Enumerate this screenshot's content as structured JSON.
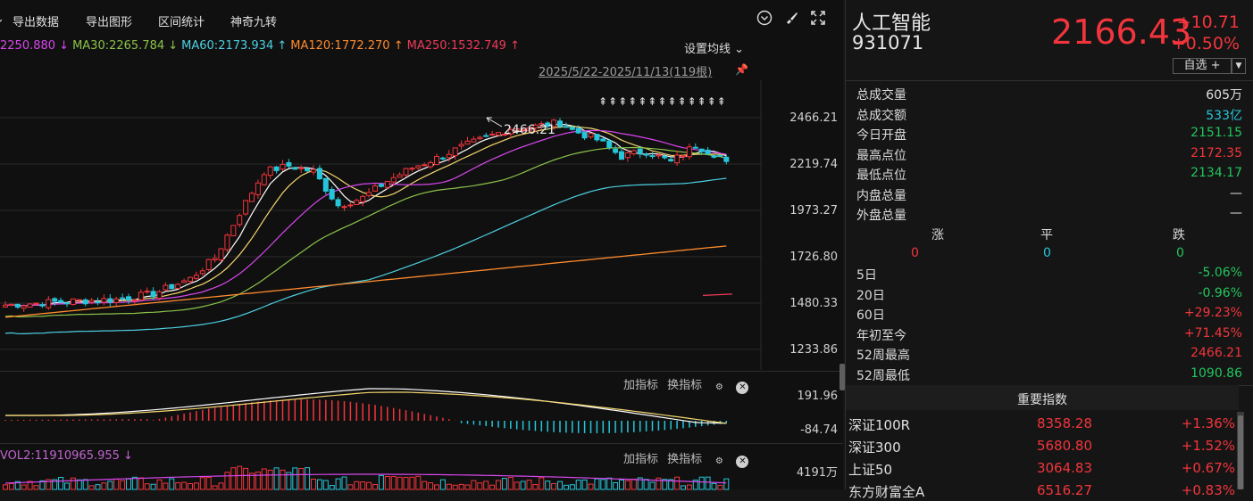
{
  "toolbar": {
    "export_data": "导出数据",
    "export_chart": "导出图形",
    "interval_stats": "区间统计",
    "magic_nine": "神奇九转"
  },
  "ma_legend": [
    {
      "text": "2250.880 ↓",
      "color": "#d946ef"
    },
    {
      "text": "MA30:2265.784 ↓",
      "color": "#8bc34a"
    },
    {
      "text": "MA60:2173.934 ↑",
      "color": "#4dd0e1"
    },
    {
      "text": "MA120:1772.270 ↑",
      "color": "#ff8c2e"
    },
    {
      "text": "MA250:1532.749 ↑",
      "color": "#ef3b5a"
    }
  ],
  "ma_settings": "设置均线 ⌄",
  "date_range": "2025/5/22-2025/11/13(119根)",
  "price_axis": [
    "2466.21",
    "2219.74",
    "1973.27",
    "1726.80",
    "1480.33",
    "1233.86"
  ],
  "peak_label": "2466.21",
  "signal_arrows": "⇞⇞⇞⇞⇞⇞⇞⇞⇞⇞⇞⇞⇞",
  "macd_panel": {
    "add_indicator": "加指标",
    "switch_indicator": "换指标",
    "axis_top": "191.96",
    "axis_bottom": "-84.74"
  },
  "vol_panel": {
    "legend": "VOL2:11910965.955 ↓",
    "add_indicator": "加指标",
    "switch_indicator": "换指标",
    "axis_top": "4191万"
  },
  "quote": {
    "name": "人工智能",
    "code": "931071",
    "price": "2166.43",
    "change": "+10.71",
    "change_pct": "+0.50%",
    "watchlist_btn": "自选 +",
    "fields": [
      {
        "label": "总成交量",
        "value": "605万",
        "color": "white"
      },
      {
        "label": "总成交额",
        "value": "533亿",
        "color": "cyan"
      },
      {
        "label": "今日开盘",
        "value": "2151.15",
        "color": "green"
      },
      {
        "label": "最高点位",
        "value": "2172.35",
        "color": "red"
      },
      {
        "label": "最低点位",
        "value": "2134.17",
        "color": "green"
      },
      {
        "label": "内盘总量",
        "value": "—",
        "color": "white"
      },
      {
        "label": "外盘总量",
        "value": "—",
        "color": "white"
      }
    ],
    "updown_headers": [
      "涨",
      "平",
      "跌"
    ],
    "updown_values": [
      "0",
      "0",
      "0"
    ],
    "periods": [
      {
        "label": "5日",
        "value": "-5.06%",
        "color": "green"
      },
      {
        "label": "20日",
        "value": "-0.96%",
        "color": "green"
      },
      {
        "label": "60日",
        "value": "+29.23%",
        "color": "red"
      },
      {
        "label": "年初至今",
        "value": "+71.45%",
        "color": "red"
      },
      {
        "label": "52周最高",
        "value": "2466.21",
        "color": "red"
      },
      {
        "label": "52周最低",
        "value": "1090.86",
        "color": "green"
      }
    ]
  },
  "indices": {
    "title": "重要指数",
    "rows": [
      {
        "name": "深证100R",
        "price": "8358.28",
        "pct": "+1.36%"
      },
      {
        "name": "深证300",
        "price": "5680.80",
        "pct": "+1.52%"
      },
      {
        "name": "上证50",
        "price": "3064.83",
        "pct": "+0.67%"
      },
      {
        "name": "东方财富全A",
        "price": "6516.27",
        "pct": "+0.83%"
      }
    ]
  },
  "colors": {
    "up": "#f2353c",
    "down": "#26c6da",
    "ma5": "#ffffff",
    "ma10": "#f5d76e",
    "ma20": "#d946ef",
    "ma30": "#8bc34a",
    "ma60": "#4dd0e1",
    "ma120": "#ff8c2e",
    "ma250": "#ef3b5a"
  }
}
